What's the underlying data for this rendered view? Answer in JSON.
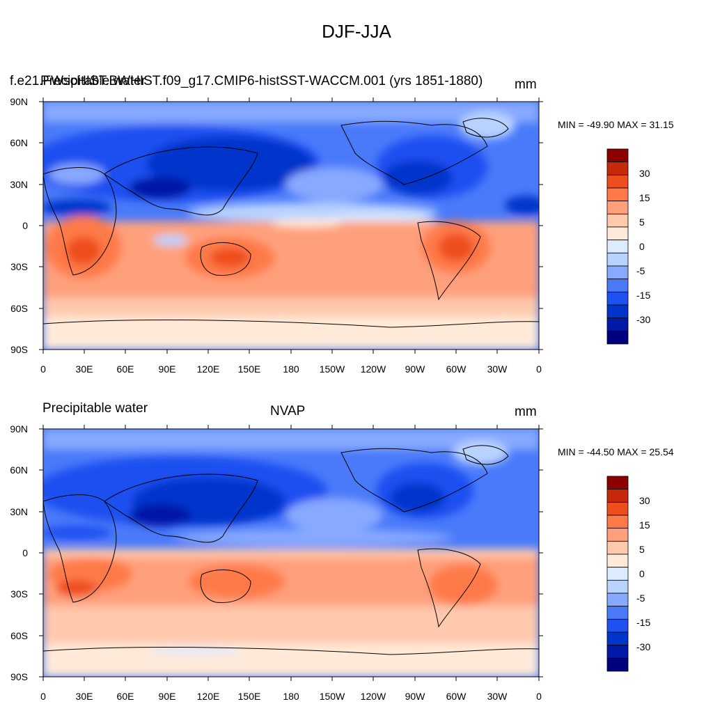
{
  "figure": {
    "main_title": "DJF-JJA"
  },
  "colorbar": {
    "colors": [
      "#00007F",
      "#0019A6",
      "#0035CC",
      "#1F50F0",
      "#4A7AFA",
      "#87A9FF",
      "#B9D3FF",
      "#DDEBFF",
      "#FFEAD9",
      "#FFC9AE",
      "#FFA07C",
      "#FF7A48",
      "#EE4E1E",
      "#C72A0A",
      "#8C0000"
    ],
    "tick_labels": [
      "-30",
      "-15",
      "-5",
      "0",
      "5",
      "15",
      "30"
    ]
  },
  "axes": {
    "lat_labels": [
      "90N",
      "60N",
      "30N",
      "0",
      "30S",
      "60S",
      "90S"
    ],
    "lon_labels": [
      "0",
      "30E",
      "60E",
      "90E",
      "120E",
      "150E",
      "180",
      "150W",
      "120W",
      "90W",
      "60W",
      "30W",
      "0"
    ]
  },
  "panels": [
    {
      "left_title": "Precipitable water",
      "center_title": "f.e21.FWscHIST.BWHIST.f09_g17.CMIP6-histSST-WACCM.001 (yrs 1851-1880)",
      "right_title": "mm",
      "minmax": "MIN = -49.90 MAX =  31.15"
    },
    {
      "left_title": "Precipitable water",
      "center_title": "NVAP",
      "right_title": "mm",
      "minmax": "MIN = -44.50 MAX =  25.54"
    }
  ]
}
